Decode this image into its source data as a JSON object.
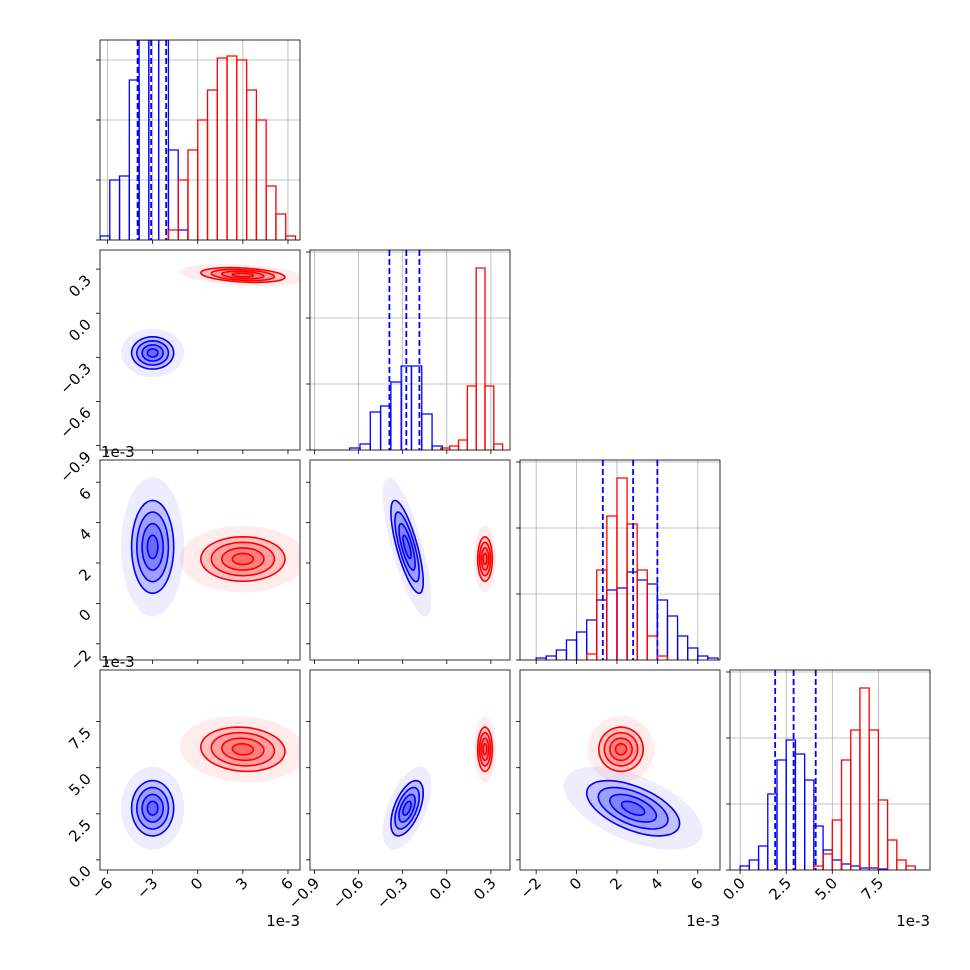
{
  "chart_data": {
    "type": "corner",
    "variables": [
      {
        "lim": [
          -6.5,
          6.8
        ],
        "ticks": [
          {
            "value": -6,
            "label": "−6"
          },
          {
            "value": -3,
            "label": "−3"
          },
          0,
          3,
          6
        ],
        "offset": "1e-3"
      },
      {
        "lim": [
          -0.93,
          0.43
        ],
        "ticks": [
          {
            "value": -0.9,
            "label": "−0.9"
          },
          {
            "value": -0.6,
            "label": "−0.6"
          },
          {
            "value": -0.3,
            "label": "−0.3"
          },
          {
            "value": 0,
            "label": "0.0"
          },
          0.3
        ]
      },
      {
        "lim": [
          -2.8,
          7.1
        ],
        "ticks": [
          {
            "value": -2,
            "label": "−2"
          },
          0,
          2,
          4,
          6
        ],
        "offset": "1e-3"
      },
      {
        "lim": [
          -0.55,
          10.3
        ],
        "ticks": [
          {
            "value": 0,
            "label": "0.0"
          },
          2.5,
          {
            "value": 5,
            "label": "5.0"
          },
          7.5
        ],
        "offset": "1e-3"
      }
    ],
    "grid": true,
    "histograms": [
      {
        "ylim": [
          0,
          1
        ],
        "yticks": [
          0,
          0.3,
          0.6,
          0.9
        ],
        "quantiles": [
          -4.0,
          -3.1,
          -2.1
        ],
        "quantile_color": "#0000ff",
        "series": [
          {
            "color": "#0000ff",
            "bins": [
              -6.5,
              -5.85,
              -5.2,
              -4.55,
              -3.9,
              -3.25,
              -2.6,
              -1.95,
              -1.3,
              -0.65
            ],
            "values": [
              0.02,
              0.3,
              0.32,
              0.8,
              1.0,
              1.0,
              1.0,
              0.45,
              0.05
            ]
          },
          {
            "color": "#ff0000",
            "bins": [
              -1.95,
              -1.3,
              -0.65,
              0,
              0.65,
              1.3,
              1.95,
              2.6,
              3.25,
              3.9,
              4.55,
              5.2,
              5.85,
              6.5
            ],
            "values": [
              0.05,
              0.3,
              0.45,
              0.6,
              0.75,
              0.91,
              0.92,
              0.9,
              0.75,
              0.6,
              0.27,
              0.13,
              0.02
            ]
          }
        ]
      },
      {
        "ylim": [
          0,
          1
        ],
        "yticks": [
          0,
          0.33,
          0.66,
          0.99
        ],
        "quantiles": [
          -0.39,
          -0.275,
          -0.186
        ],
        "quantile_color": "#0000ff",
        "series": [
          {
            "color": "#0000ff",
            "bins": [
              -0.66,
              -0.59,
              -0.52,
              -0.45,
              -0.38,
              -0.31,
              -0.24,
              -0.17,
              -0.1,
              -0.03
            ],
            "values": [
              0.01,
              0.03,
              0.19,
              0.22,
              0.34,
              0.42,
              0.42,
              0.18,
              0.02
            ]
          },
          {
            "color": "#ff0000",
            "bins": [
              -0.04,
              0.02,
              0.08,
              0.14,
              0.2,
              0.26,
              0.32,
              0.38
            ],
            "values": [
              0.01,
              0.02,
              0.05,
              0.32,
              0.91,
              0.32,
              0.03
            ]
          }
        ]
      },
      {
        "ylim": [
          0,
          1
        ],
        "yticks": [
          0,
          0.33,
          0.66,
          0.99
        ],
        "quantiles": [
          1.3,
          2.8,
          4.0
        ],
        "quantile_color": "#0000ff",
        "series": [
          {
            "color": "#0000ff",
            "bins": [
              -2.0,
              -1.5,
              -1.0,
              -0.5,
              0,
              0.5,
              1.0,
              1.5,
              2.0,
              2.5,
              3.0,
              3.5,
              4.0,
              4.5,
              5.0,
              5.5,
              6.0,
              6.5,
              7.0
            ],
            "values": [
              0.01,
              0.02,
              0.05,
              0.1,
              0.14,
              0.2,
              0.3,
              0.35,
              0.36,
              0.44,
              0.4,
              0.38,
              0.3,
              0.22,
              0.12,
              0.06,
              0.02,
              0.01
            ]
          },
          {
            "color": "#ff0000",
            "bins": [
              0.5,
              1.0,
              1.5,
              2.0,
              2.5,
              3.0,
              3.5,
              4.0,
              4.5
            ],
            "values": [
              0.03,
              0.45,
              0.72,
              0.91,
              0.68,
              0.45,
              0.12,
              0.02
            ]
          }
        ]
      },
      {
        "ylim": [
          0,
          1
        ],
        "yticks": [
          0,
          0.33,
          0.66,
          0.99
        ],
        "quantiles": [
          1.9,
          2.9,
          4.1
        ],
        "quantile_color": "#0000ff",
        "series": [
          {
            "color": "#0000ff",
            "bins": [
              0,
              0.5,
              1.0,
              1.5,
              2.0,
              2.5,
              3.0,
              3.5,
              4.0,
              4.5,
              5.0,
              5.5,
              6.0,
              6.5,
              7.0,
              7.5,
              8.0
            ],
            "values": [
              0.02,
              0.05,
              0.12,
              0.38,
              0.55,
              0.65,
              0.58,
              0.45,
              0.22,
              0.1,
              0.05,
              0.03,
              0.02,
              0.01,
              0.01,
              0.005
            ]
          },
          {
            "color": "#ff0000",
            "bins": [
              4.0,
              4.5,
              5.0,
              5.5,
              6.0,
              6.5,
              7.0,
              7.5,
              8.0,
              8.5,
              9.0,
              9.5
            ],
            "values": [
              0.02,
              0.08,
              0.25,
              0.55,
              0.7,
              0.91,
              0.7,
              0.35,
              0.15,
              0.05,
              0.02
            ]
          }
        ]
      }
    ],
    "contour_levels": [
      0.5,
      1,
      1.5,
      2,
      3
    ],
    "panels": [
      {
        "x": 0,
        "y": 1,
        "clusters": [
          {
            "color": "#0000ff",
            "center": [
              -3,
              -0.27
            ],
            "sigma": [
              0.7,
              0.055
            ],
            "rho": 0
          },
          {
            "color": "#ff0000",
            "center": [
              3,
              0.26
            ],
            "sigma": [
              1.4,
              0.025
            ],
            "rho": -0.3
          }
        ]
      },
      {
        "x": 0,
        "y": 2,
        "clusters": [
          {
            "color": "#0000ff",
            "center": [
              -3,
              2.8
            ],
            "sigma": [
              0.7,
              1.15
            ],
            "rho": 0
          },
          {
            "color": "#ff0000",
            "center": [
              3,
              2.2
            ],
            "sigma": [
              1.4,
              0.55
            ],
            "rho": 0
          }
        ]
      },
      {
        "x": 1,
        "y": 2,
        "clusters": [
          {
            "color": "#0000ff",
            "center": [
              -0.27,
              2.8
            ],
            "sigma": [
              0.055,
              1.15
            ],
            "rho": -0.75
          },
          {
            "color": "#ff0000",
            "center": [
              0.26,
              2.2
            ],
            "sigma": [
              0.025,
              0.55
            ],
            "rho": 0
          }
        ]
      },
      {
        "x": 0,
        "y": 3,
        "clusters": [
          {
            "color": "#0000ff",
            "center": [
              -3,
              2.8
            ],
            "sigma": [
              0.7,
              0.75
            ],
            "rho": 0
          },
          {
            "color": "#ff0000",
            "center": [
              3,
              6.0
            ],
            "sigma": [
              1.4,
              0.6
            ],
            "rho": -0.1
          }
        ]
      },
      {
        "x": 1,
        "y": 3,
        "clusters": [
          {
            "color": "#0000ff",
            "center": [
              -0.27,
              2.8
            ],
            "sigma": [
              0.055,
              0.75
            ],
            "rho": 0.55
          },
          {
            "color": "#ff0000",
            "center": [
              0.26,
              6.0
            ],
            "sigma": [
              0.025,
              0.6
            ],
            "rho": 0
          }
        ]
      },
      {
        "x": 2,
        "y": 3,
        "clusters": [
          {
            "color": "#0000ff",
            "center": [
              2.8,
              2.8
            ],
            "sigma": [
              1.15,
              0.75
            ],
            "rho": -0.55
          },
          {
            "color": "#ff0000",
            "center": [
              2.2,
              6.0
            ],
            "sigma": [
              0.55,
              0.6
            ],
            "rho": 0
          }
        ]
      }
    ]
  }
}
